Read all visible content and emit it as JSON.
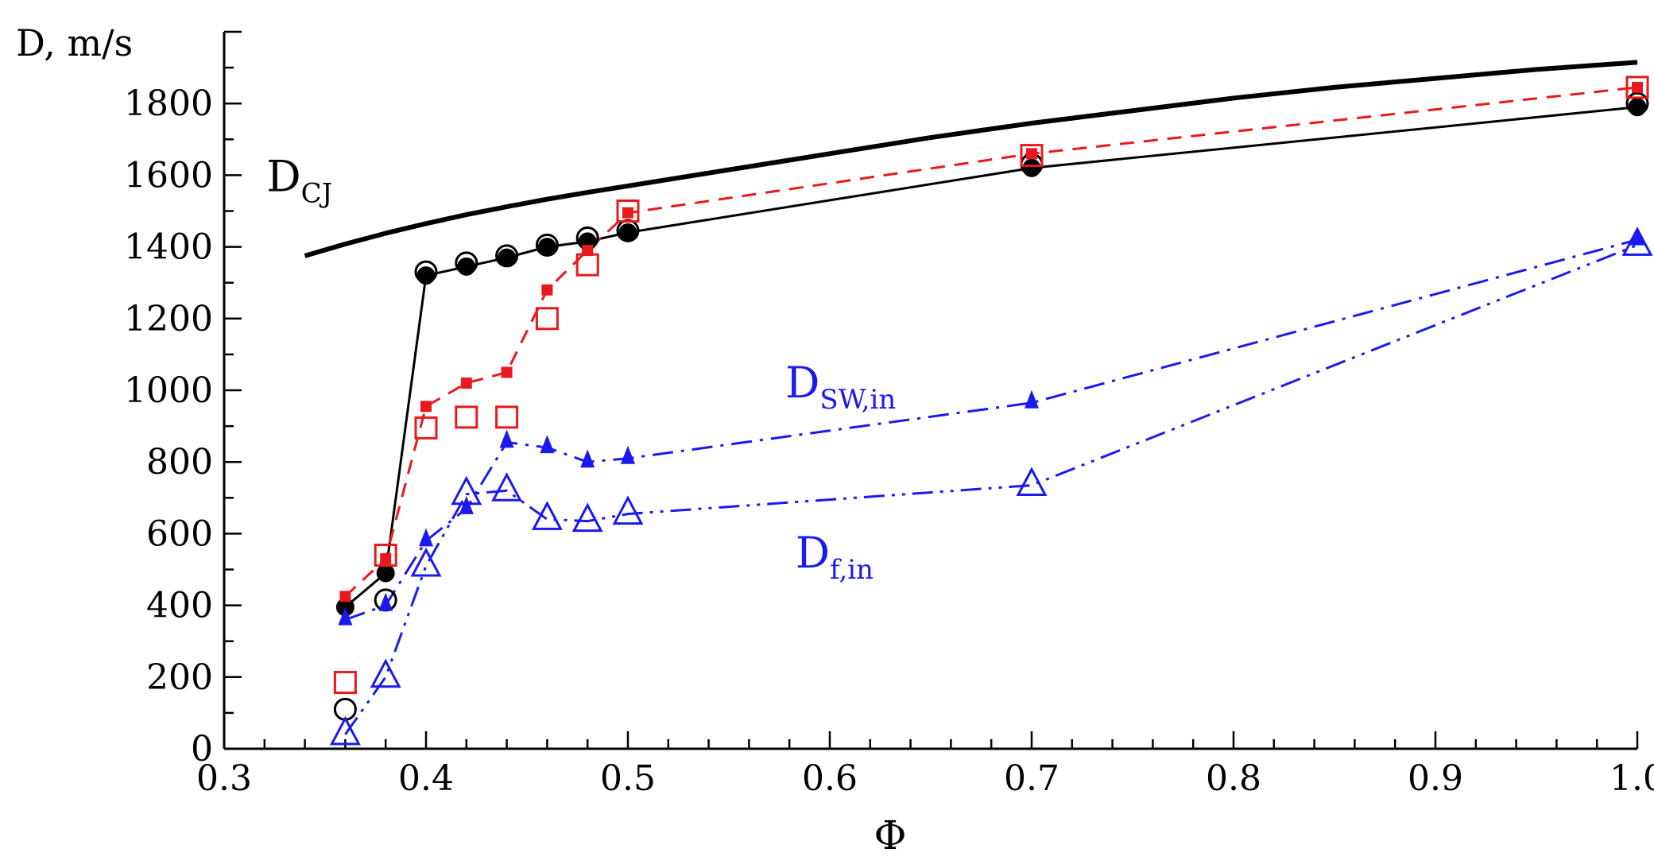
{
  "chart_data": {
    "type": "line",
    "title": "",
    "xlabel": "Φ",
    "ylabel": "D, m/s",
    "xlim": [
      0.3,
      1.0
    ],
    "ylim": [
      0,
      2000
    ],
    "xticks": [
      "0.3",
      "0.4",
      "0.5",
      "0.6",
      "0.7",
      "0.8",
      "0.9",
      "1.0"
    ],
    "yticks": [
      "0",
      "200",
      "400",
      "600",
      "800",
      "1000",
      "1200",
      "1400",
      "1600",
      "1800"
    ],
    "series": [
      {
        "name": "D_CJ",
        "style": "solid-thick",
        "color": "#000000",
        "marker": "none",
        "x": [
          0.34,
          0.36,
          0.38,
          0.4,
          0.42,
          0.44,
          0.46,
          0.48,
          0.5,
          0.55,
          0.6,
          0.65,
          0.7,
          0.75,
          0.8,
          0.85,
          0.9,
          0.95,
          1.0
        ],
        "y": [
          1375,
          1408,
          1438,
          1465,
          1490,
          1512,
          1533,
          1552,
          1570,
          1615,
          1660,
          1705,
          1745,
          1780,
          1815,
          1845,
          1870,
          1895,
          1915
        ]
      },
      {
        "name": "black-filled-solid",
        "style": "solid",
        "color": "#000000",
        "marker": "filled-circle",
        "x": [
          0.36,
          0.38,
          0.4,
          0.42,
          0.44,
          0.46,
          0.48,
          0.5,
          0.7,
          1.0
        ],
        "y": [
          395,
          490,
          1320,
          1345,
          1370,
          1400,
          1415,
          1440,
          1620,
          1790
        ]
      },
      {
        "name": "black-open-circles",
        "style": "none",
        "color": "#000000",
        "marker": "open-circle",
        "x": [
          0.36,
          0.38,
          0.4,
          0.42,
          0.44,
          0.46,
          0.48,
          0.5,
          0.7,
          1.0
        ],
        "y": [
          110,
          415,
          1330,
          1355,
          1375,
          1405,
          1425,
          1445,
          1630,
          1800
        ]
      },
      {
        "name": "red-filled-dashed",
        "style": "dashed",
        "color": "#e8191c",
        "marker": "filled-square",
        "x": [
          0.36,
          0.38,
          0.4,
          0.42,
          0.44,
          0.46,
          0.48,
          0.5,
          0.7,
          1.0
        ],
        "y": [
          425,
          530,
          955,
          1020,
          1050,
          1280,
          1390,
          1495,
          1660,
          1845
        ]
      },
      {
        "name": "red-open-squares",
        "style": "none",
        "color": "#e8191c",
        "marker": "open-square",
        "x": [
          0.36,
          0.38,
          0.4,
          0.42,
          0.44,
          0.46,
          0.48,
          0.5,
          0.7,
          1.0
        ],
        "y": [
          185,
          540,
          895,
          925,
          925,
          1200,
          1350,
          1500,
          1655,
          1845
        ]
      },
      {
        "name": "D_SW,in",
        "style": "dashdot",
        "color": "#1a1aee",
        "marker": "filled-triangle",
        "x": [
          0.36,
          0.38,
          0.4,
          0.42,
          0.44,
          0.46,
          0.48,
          0.5,
          0.7,
          1.0
        ],
        "y": [
          360,
          400,
          580,
          670,
          855,
          840,
          800,
          810,
          965,
          1420
        ]
      },
      {
        "name": "D_f,in",
        "style": "dashdotdot",
        "color": "#1a1aee",
        "marker": "open-triangle",
        "x": [
          0.36,
          0.38,
          0.4,
          0.42,
          0.44,
          0.46,
          0.48,
          0.5,
          0.7,
          1.0
        ],
        "y": [
          40,
          200,
          510,
          710,
          720,
          640,
          635,
          655,
          735,
          1405
        ]
      }
    ],
    "annotations": [
      {
        "id": "dcj",
        "main": "D",
        "sub": "CJ",
        "color": "#000000",
        "x": 0.321,
        "y": 1555
      },
      {
        "id": "dsw",
        "main": "D",
        "sub": "SW,in",
        "color": "#1a1aee",
        "x": 0.578,
        "y": 980
      },
      {
        "id": "dfin",
        "main": "D",
        "sub": "f,in",
        "color": "#1a1aee",
        "x": 0.583,
        "y": 505
      }
    ]
  }
}
